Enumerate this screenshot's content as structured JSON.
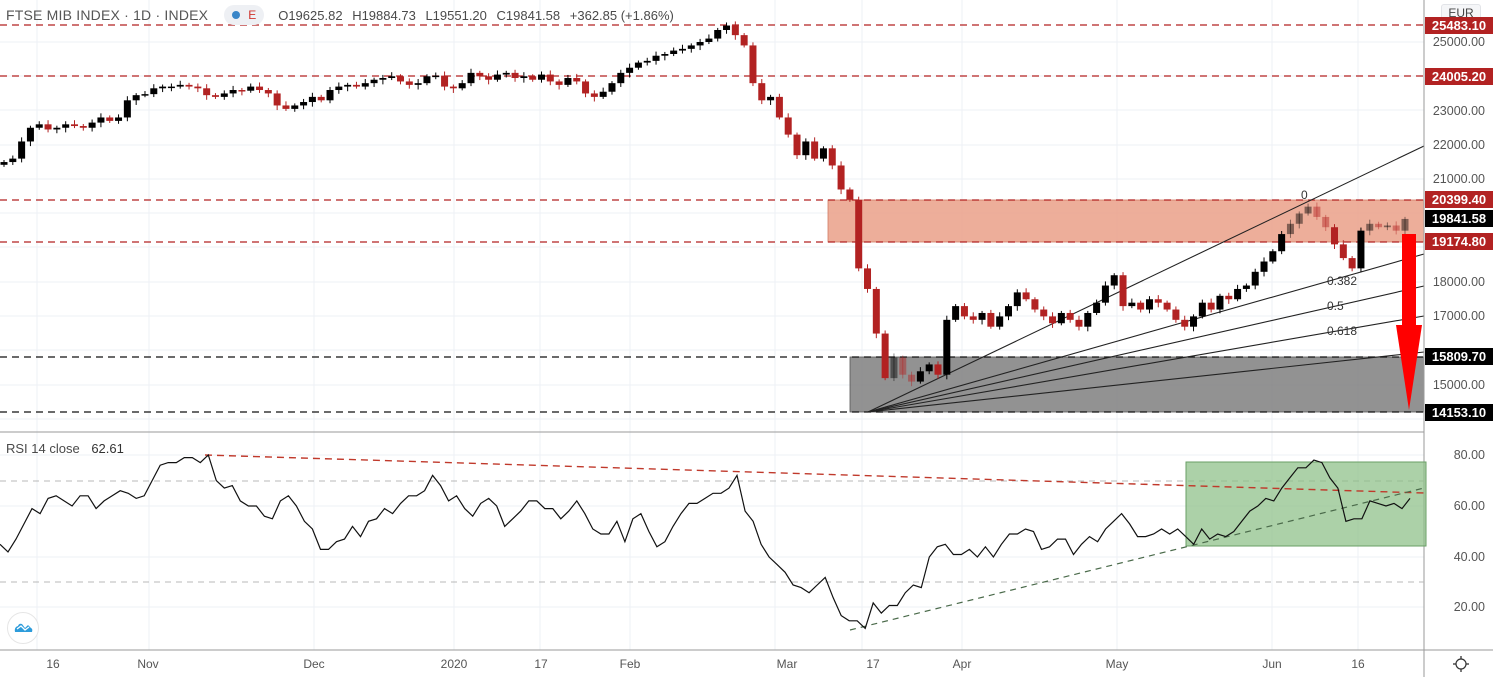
{
  "header": {
    "symbol_title": "FTSE MIB INDEX · 1D · INDEX",
    "badge_letter": "E",
    "open": "O19625.82",
    "high": "H19884.73",
    "low": "L19551.20",
    "close": "C19841.58",
    "change": "+362.85 (+1.86%)",
    "currency": "EUR"
  },
  "rsi_panel": {
    "label": "RSI 14 close",
    "value": "62.61",
    "axis_ticks": [
      "80.00",
      "60.00",
      "40.00",
      "20.00"
    ]
  },
  "price_axis": {
    "ticks": [
      "25000.00",
      "23000.00",
      "22000.00",
      "21000.00",
      "18000.00",
      "17000.00",
      "15000.00"
    ],
    "labels": [
      {
        "text": "25483.10",
        "style": "red"
      },
      {
        "text": "24005.20",
        "style": "red"
      },
      {
        "text": "20399.40",
        "style": "red"
      },
      {
        "text": "19841.58",
        "style": "black"
      },
      {
        "text": "19174.80",
        "style": "red"
      },
      {
        "text": "15809.70",
        "style": "black"
      },
      {
        "text": "14153.10",
        "style": "black"
      }
    ]
  },
  "time_axis": {
    "labels": [
      "16",
      "Nov",
      "Dec",
      "2020",
      "17",
      "Feb",
      "Mar",
      "17",
      "Apr",
      "May",
      "Jun",
      "16"
    ]
  },
  "fib_fan_labels": [
    "0",
    "0.382",
    "0.5",
    "0.618"
  ],
  "colors": {
    "up_candle": "#000000",
    "down_candle": "#b22222",
    "resistance_zone": "#eaa088",
    "support_zone": "#7f7f7f",
    "rsi_zone": "#8cbf86",
    "arrow": "#ff0000",
    "level_line": "#b22222"
  },
  "chart_data": [
    {
      "type": "candlestick",
      "title": "FTSE MIB INDEX · 1D · INDEX",
      "currency": "EUR",
      "ylim": [
        13800,
        26200
      ],
      "x_tick_labels": [
        "16",
        "Nov",
        "Dec",
        "2020",
        "17",
        "Feb",
        "Mar",
        "17",
        "Apr",
        "May",
        "Jun",
        "16"
      ],
      "last_candle": {
        "open": 19625.82,
        "high": 19884.73,
        "low": 19551.2,
        "close": 19841.58,
        "change": 362.85,
        "change_pct": 1.86
      },
      "horizontal_levels": [
        25483.1,
        24005.2,
        20399.4,
        19174.8,
        15809.7,
        14153.1
      ],
      "resistance_zone": [
        19174.8,
        20399.4
      ],
      "support_zone": [
        14153.1,
        15809.7
      ],
      "fib_fan_levels": [
        0,
        0.382,
        0.5,
        0.618
      ],
      "projection_arrow": {
        "from": 19174.8,
        "to": 14153.1
      },
      "approx_closes": [
        21500,
        21600,
        22100,
        22500,
        22600,
        22450,
        22500,
        22600,
        22550,
        22500,
        22650,
        22800,
        22700,
        22800,
        23300,
        23450,
        23480,
        23650,
        23700,
        23700,
        23750,
        23700,
        23650,
        23450,
        23400,
        23500,
        23600,
        23580,
        23700,
        23600,
        23500,
        23150,
        23050,
        23150,
        23250,
        23400,
        23300,
        23600,
        23700,
        23750,
        23700,
        23800,
        23900,
        23950,
        24000,
        23850,
        23750,
        23800,
        24000,
        24020,
        23700,
        23650,
        23800,
        24100,
        24000,
        23900,
        24050,
        24100,
        23950,
        24000,
        23900,
        24050,
        23850,
        23750,
        23950,
        23850,
        23500,
        23400,
        23550,
        23800,
        24100,
        24250,
        24400,
        24450,
        24600,
        24650,
        24750,
        24800,
        24900,
        25000,
        25100,
        25350,
        25480,
        25200,
        24900,
        23800,
        23300,
        23400,
        22800,
        22300,
        21700,
        22100,
        21600,
        21900,
        21400,
        20700,
        20400,
        18400,
        17800,
        16500,
        15200,
        15800,
        15300,
        15100,
        15400,
        15600,
        15300,
        16900,
        17300,
        17000,
        16900,
        17100,
        16700,
        17000,
        17300,
        17700,
        17500,
        17200,
        17000,
        16800,
        17100,
        16900,
        16700,
        17100,
        17400,
        17900,
        18200,
        17300,
        17400,
        17200,
        17500,
        17400,
        17200,
        16900,
        16700,
        17000,
        17400,
        17200,
        17600,
        17500,
        17800,
        17900,
        18300,
        18600,
        18900,
        19400,
        19700,
        20000,
        20200,
        19900,
        19600,
        19100,
        18700,
        18400,
        19500,
        19700,
        19600,
        19650,
        19500,
        19841.58
      ]
    },
    {
      "type": "line",
      "title": "RSI 14 close",
      "last_value": 62.61,
      "ylim": [
        5,
        85
      ],
      "y_ticks": [
        20,
        40,
        60,
        80
      ],
      "reference_lines": [
        70,
        30
      ],
      "values": [
        45,
        42,
        47,
        53,
        59,
        57,
        63,
        64,
        62,
        60,
        64,
        64,
        59,
        62,
        64,
        66,
        65,
        63,
        64,
        70,
        76,
        77,
        77,
        79,
        79,
        77,
        80,
        70,
        67,
        68,
        62,
        60,
        60,
        56,
        55,
        62,
        64,
        60,
        54,
        51,
        43,
        43,
        46,
        47,
        52,
        48,
        54,
        55,
        59,
        57,
        61,
        64,
        64,
        66,
        72,
        68,
        62,
        64,
        59,
        56,
        61,
        63,
        60,
        52,
        55,
        58,
        62,
        62,
        59,
        59,
        55,
        58,
        62,
        57,
        51,
        49,
        49,
        54,
        46,
        55,
        57,
        50,
        44,
        46,
        52,
        57,
        61,
        61,
        63,
        65,
        65,
        67,
        72,
        58,
        54,
        45,
        40,
        37,
        34,
        29,
        28,
        26,
        29,
        32,
        24,
        17,
        15,
        15,
        12,
        22,
        18,
        21,
        21,
        26,
        29,
        28,
        40,
        44,
        45,
        41,
        41,
        43,
        40,
        44,
        40,
        45,
        49,
        49,
        51,
        50,
        43,
        44,
        47,
        47,
        41,
        45,
        48,
        46,
        51,
        54,
        57,
        53,
        48,
        48,
        49,
        51,
        49,
        51,
        48,
        45,
        51,
        47,
        49,
        48,
        50,
        54,
        58,
        60,
        63,
        62,
        67,
        71,
        75,
        75,
        78,
        77,
        71,
        67,
        54,
        55,
        55,
        62,
        61,
        60,
        61,
        59,
        63
      ],
      "annotations": {
        "descending_trendline": {
          "from_value": 80,
          "to_value": 62
        },
        "ascending_trendline": {
          "from_value": 12,
          "to_value": 64
        },
        "highlight_zone": [
          44,
          77
        ]
      }
    }
  ]
}
